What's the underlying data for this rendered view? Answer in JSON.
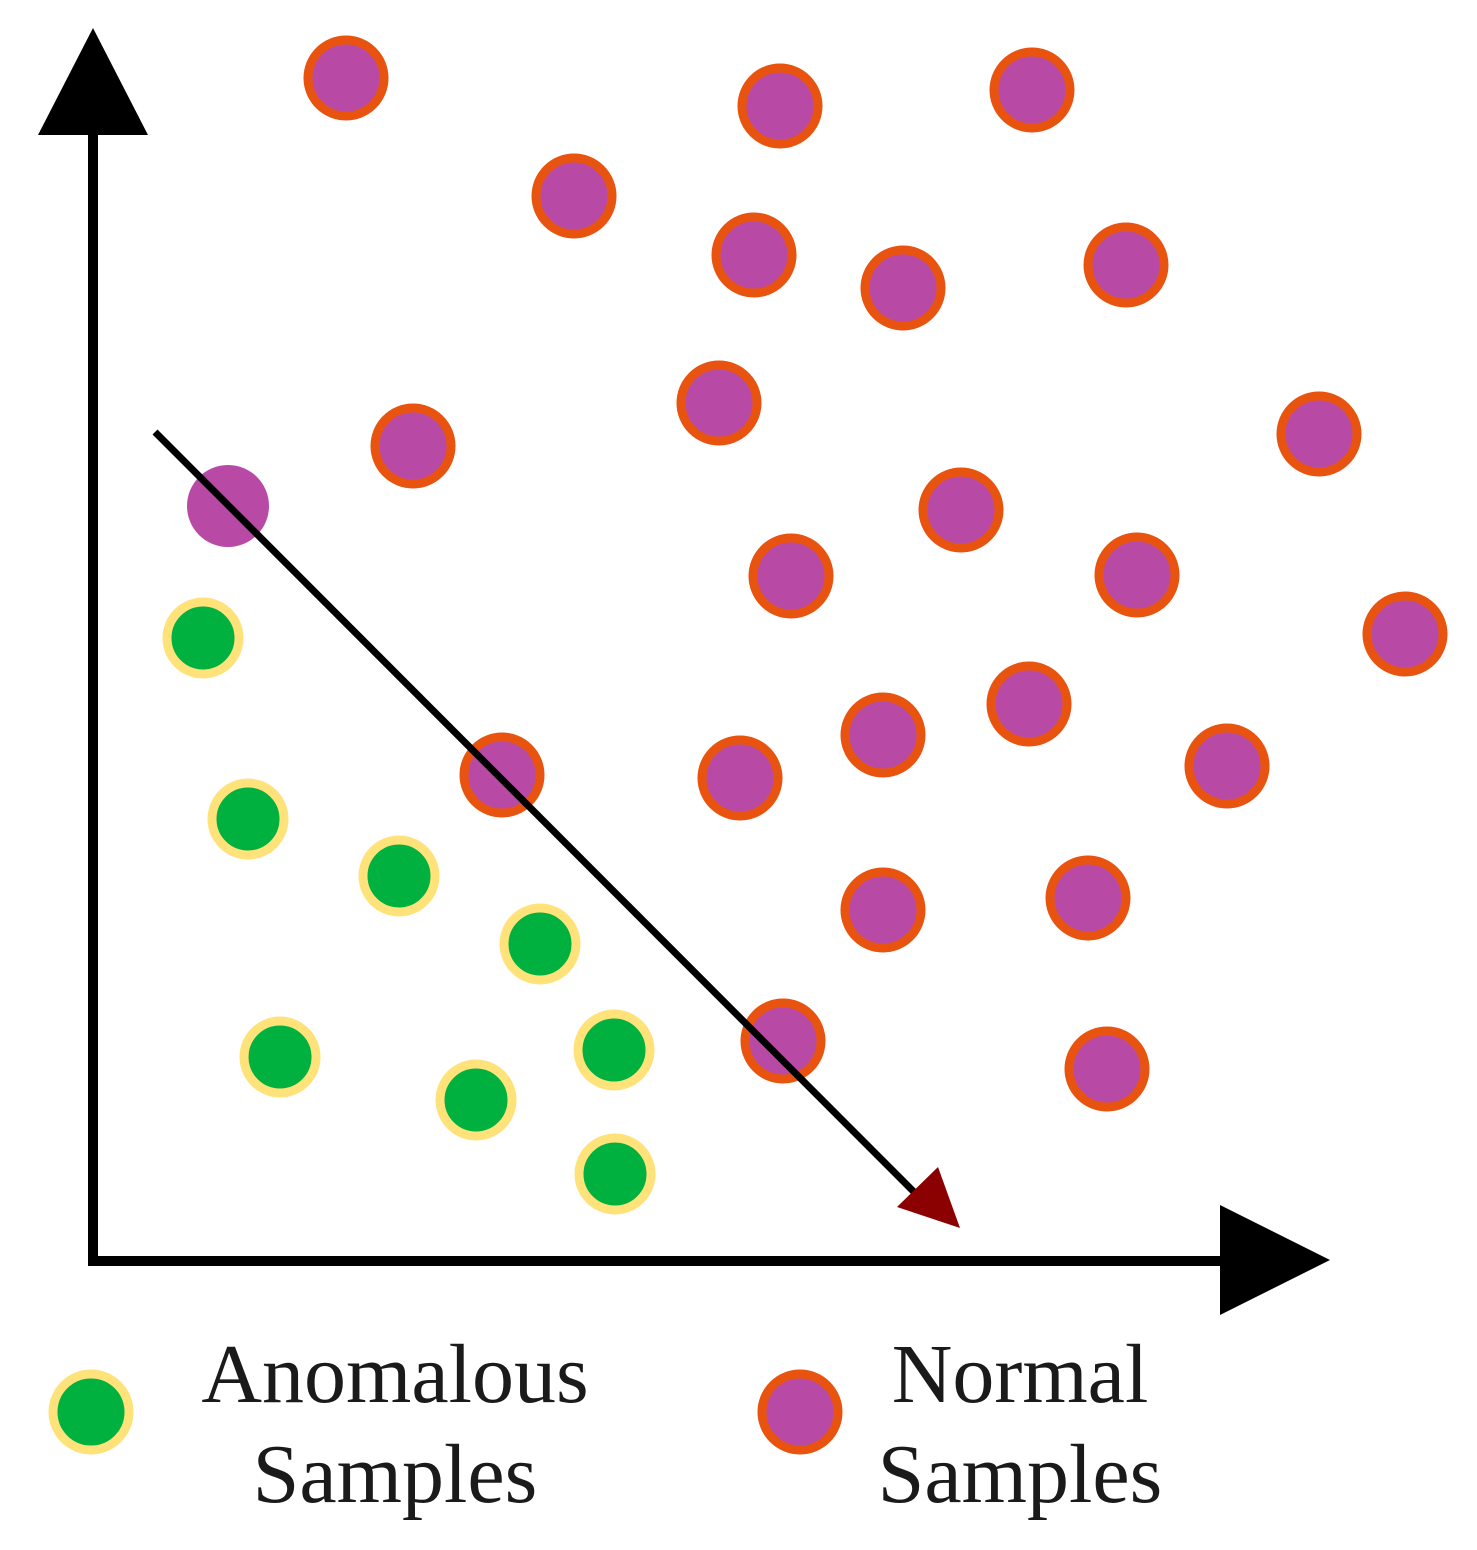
{
  "legend": {
    "anomalous": {
      "line1": "Anomalous",
      "line2": "Samples"
    },
    "normal": {
      "line1": "Normal",
      "line2": "Samples"
    }
  },
  "colors": {
    "anomalous_fill": "#00b140",
    "anomalous_ring": "#ffe27a",
    "normal_fill": "#b84aa6",
    "normal_ring": "#e8540f",
    "axis": "#000000",
    "arrow_head": "#8b0000"
  }
}
